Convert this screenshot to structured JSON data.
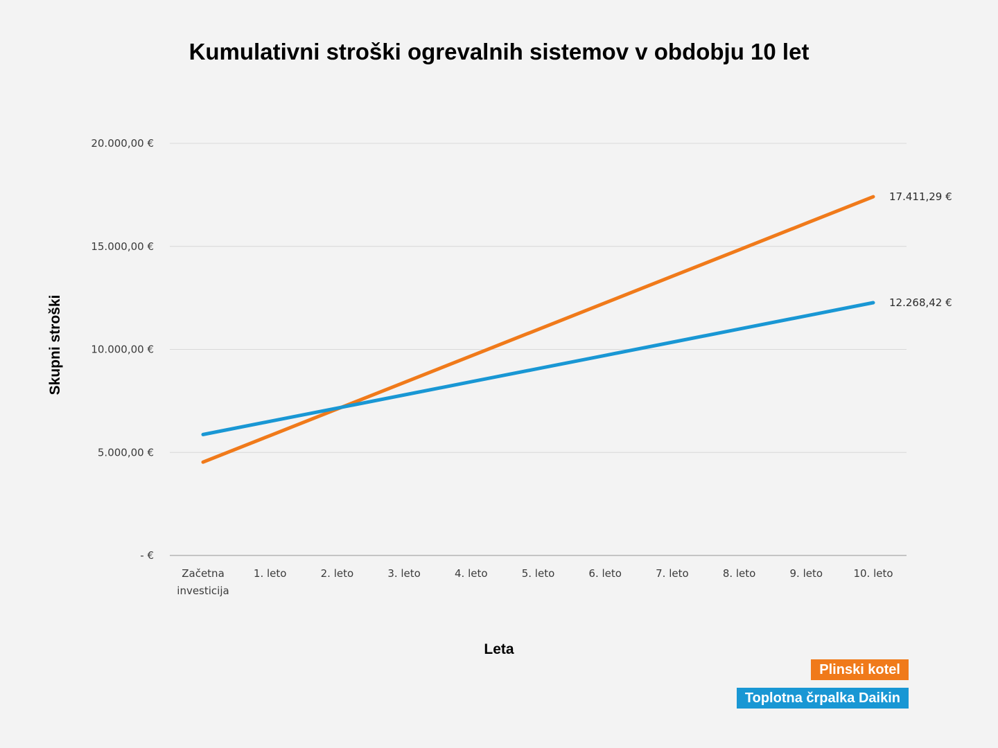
{
  "chart_data": {
    "type": "line",
    "title": "Kumulativni stroški ogrevalnih sistemov v obdobju 10 let",
    "xlabel": "Leta",
    "ylabel": "Skupni stroški",
    "categories": [
      "Začetna investicija",
      "1. leto",
      "2. leto",
      "3. leto",
      "4. leto",
      "5. leto",
      "6. leto",
      "7. leto",
      "8. leto",
      "9. leto",
      "10. leto"
    ],
    "ylim": [
      0,
      20000
    ],
    "yticks": [
      0,
      5000,
      10000,
      15000,
      20000
    ],
    "ytick_labels": [
      "-  €",
      "5.000,00 €",
      "10.000,00 €",
      "15.000,00 €",
      "20.000,00 €"
    ],
    "grid": true,
    "legend_position": "bottom-right",
    "series": [
      {
        "name": "Plinski kotel",
        "color": "#f07a1a",
        "values": [
          4530,
          5818,
          7106,
          8394,
          9682,
          10970,
          12259,
          13547,
          14835,
          16123,
          17411.29
        ],
        "end_label": "17.411,29 €"
      },
      {
        "name": "Toplotna črpalka Daikin",
        "color": "#1997d4",
        "values": [
          5870,
          6510,
          7150,
          7790,
          8430,
          9070,
          9709,
          10349,
          10989,
          11629,
          12268.42
        ],
        "end_label": "12.268,42 €"
      }
    ]
  }
}
